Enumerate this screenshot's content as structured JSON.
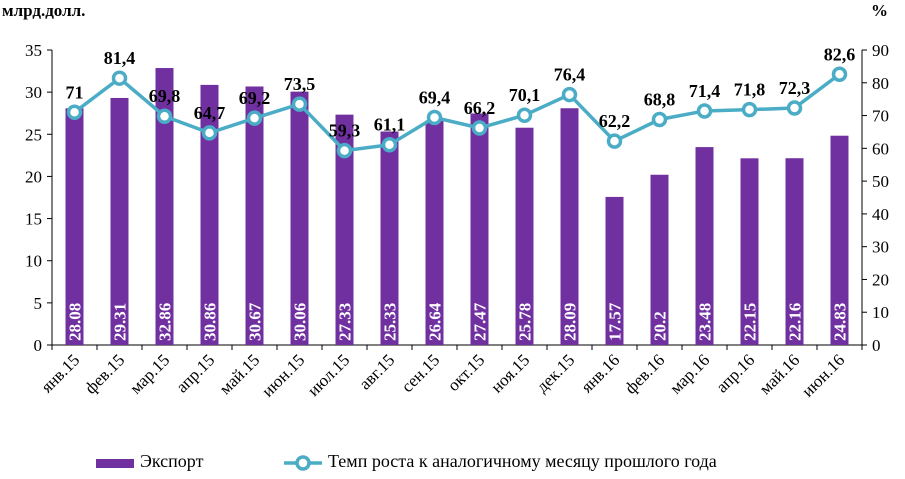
{
  "chart_data": {
    "type": "bar",
    "categories": [
      "янв.15",
      "фев.15",
      "мар.15",
      "апр.15",
      "май.15",
      "июн.15",
      "июл.15",
      "авг.15",
      "сен.15",
      "окт.15",
      "ноя.15",
      "дек.15",
      "янв.16",
      "фев.16",
      "мар.16",
      "апр.16",
      "май.16",
      "июн.16"
    ],
    "series": [
      {
        "name": "Экспорт",
        "type": "bar",
        "axis": "left",
        "color": "#7030a0",
        "values": [
          28.08,
          29.31,
          32.86,
          30.86,
          30.67,
          30.06,
          27.33,
          25.33,
          26.64,
          27.47,
          25.78,
          28.09,
          17.57,
          20.2,
          23.48,
          22.15,
          22.16,
          24.83
        ],
        "labels": [
          "28.08",
          "29.31",
          "32.86",
          "30.86",
          "30.67",
          "30.06",
          "27.33",
          "25.33",
          "26.64",
          "27.47",
          "25.78",
          "28.09",
          "17.57",
          "20.2",
          "23.48",
          "22.15",
          "22.16",
          "24.83"
        ]
      },
      {
        "name": "Темп роста к аналогичному месяцу прошлого года",
        "type": "line",
        "axis": "right",
        "color": "#4bacc6",
        "values": [
          71,
          81.4,
          69.8,
          64.7,
          69.2,
          73.5,
          59.3,
          61.1,
          69.4,
          66.2,
          70.1,
          76.4,
          62.2,
          68.8,
          71.4,
          71.8,
          72.3,
          82.6
        ],
        "labels": [
          "71",
          "81,4",
          "69,8",
          "64,7",
          "69,2",
          "73,5",
          "59,3",
          "61,1",
          "69,4",
          "66,2",
          "70,1",
          "76,4",
          "62,2",
          "68,8",
          "71,4",
          "71,8",
          "72,3",
          "82,6"
        ]
      }
    ],
    "y_left": {
      "unit": "млрд.долл.",
      "range": [
        0,
        35
      ],
      "ticks": [
        "0",
        "5",
        "10",
        "15",
        "20",
        "25",
        "30",
        "35"
      ]
    },
    "y_right": {
      "unit": "%",
      "range": [
        0,
        90
      ],
      "ticks": [
        "0",
        "10",
        "20",
        "30",
        "40",
        "50",
        "60",
        "70",
        "80",
        "90"
      ]
    },
    "grid": false,
    "legend_position": "bottom",
    "legend": [
      {
        "label": "Экспорт",
        "marker": "bar",
        "color": "#7030a0"
      },
      {
        "label": "Темп роста к аналогичному месяцу прошлого года",
        "marker": "line",
        "color": "#4bacc6"
      }
    ]
  }
}
